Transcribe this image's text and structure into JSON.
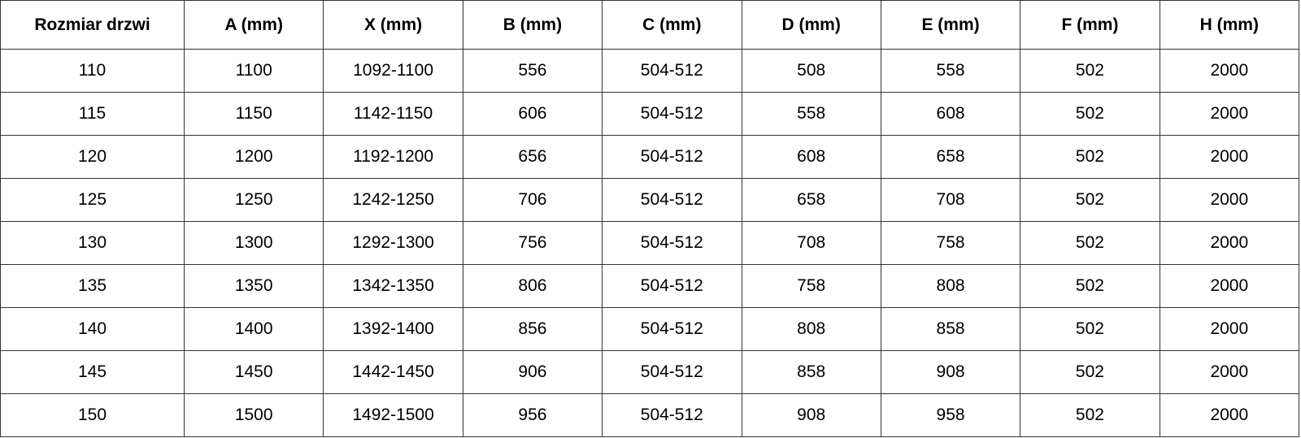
{
  "headers": [
    "Rozmiar drzwi",
    "A (mm)",
    "X (mm)",
    "B (mm)",
    "C (mm)",
    "D (mm)",
    "E (mm)",
    "F (mm)",
    "H (mm)"
  ],
  "rows": [
    [
      "110",
      "1100",
      "1092-1100",
      "556",
      "504-512",
      "508",
      "558",
      "502",
      "2000"
    ],
    [
      "115",
      "1150",
      "1142-1150",
      "606",
      "504-512",
      "558",
      "608",
      "502",
      "2000"
    ],
    [
      "120",
      "1200",
      "1192-1200",
      "656",
      "504-512",
      "608",
      "658",
      "502",
      "2000"
    ],
    [
      "125",
      "1250",
      "1242-1250",
      "706",
      "504-512",
      "658",
      "708",
      "502",
      "2000"
    ],
    [
      "130",
      "1300",
      "1292-1300",
      "756",
      "504-512",
      "708",
      "758",
      "502",
      "2000"
    ],
    [
      "135",
      "1350",
      "1342-1350",
      "806",
      "504-512",
      "758",
      "808",
      "502",
      "2000"
    ],
    [
      "140",
      "1400",
      "1392-1400",
      "856",
      "504-512",
      "808",
      "858",
      "502",
      "2000"
    ],
    [
      "145",
      "1450",
      "1442-1450",
      "906",
      "504-512",
      "858",
      "908",
      "502",
      "2000"
    ],
    [
      "150",
      "1500",
      "1492-1500",
      "956",
      "504-512",
      "908",
      "958",
      "502",
      "2000"
    ]
  ]
}
